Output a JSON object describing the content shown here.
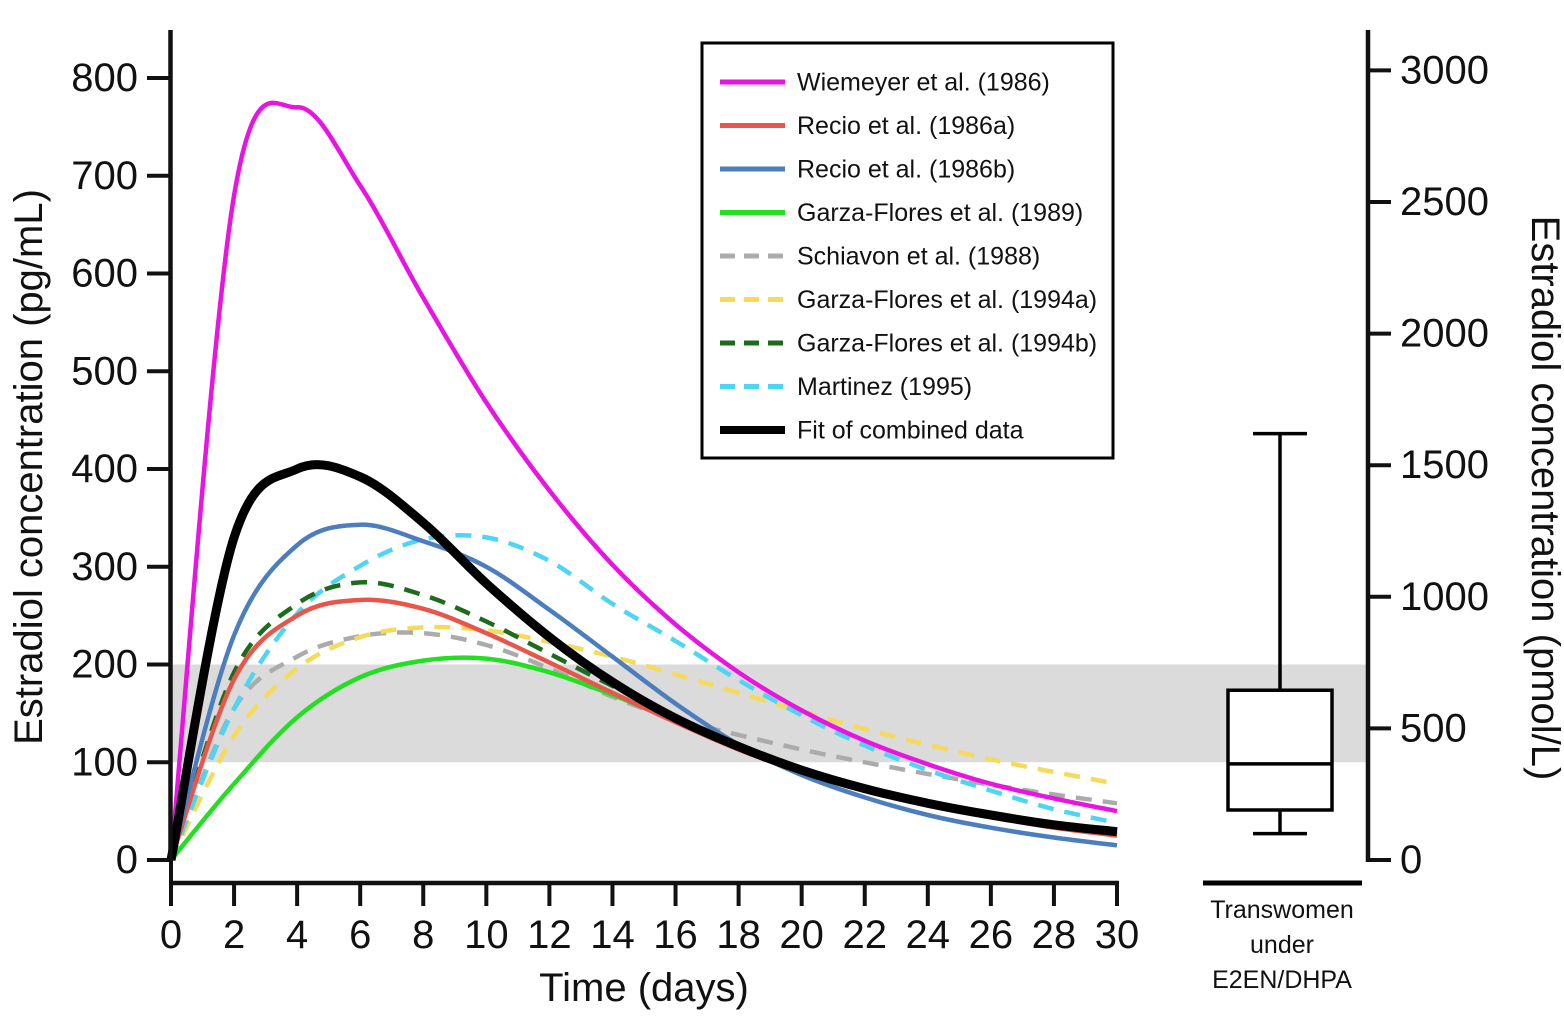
{
  "figure": {
    "description": "Pharmacokinetic curves of estradiol concentration after injection, eight studies plus combined fit, with reference band and box plot of transwomen under E2EN/DHPA",
    "background_color": "#ffffff",
    "text_color": "#111111"
  },
  "chart_data": {
    "type": "line",
    "main": {
      "x_label": "Time (days)",
      "y_left_label": "Estradiol concentration (pg/mL)",
      "y_right_label": "Estradiol concentration (pmol/L)",
      "x_range_days": [
        0,
        30
      ],
      "y_left_range_pg_ml": [
        0,
        849
      ],
      "y_right_range_pmol_l": [
        0,
        3120
      ],
      "x_ticks": [
        0,
        2,
        4,
        6,
        8,
        10,
        12,
        14,
        16,
        18,
        20,
        22,
        24,
        26,
        28,
        30
      ],
      "y_left_ticks": [
        0,
        100,
        200,
        300,
        400,
        500,
        600,
        700,
        800
      ],
      "y_right_ticks": [
        0,
        500,
        1000,
        1500,
        2000,
        2500,
        3000
      ],
      "grid": false,
      "reference_band_pg_ml": {
        "low": 100,
        "high": 200,
        "color": "#DBDBDB"
      },
      "x_days": [
        0,
        2,
        4,
        6,
        8,
        10,
        12,
        14,
        16,
        18,
        20,
        22,
        24,
        26,
        28,
        30
      ],
      "series": [
        {
          "id": "wiemeyer-1986",
          "label": "Wiemeyer et al. (1986)",
          "color": "#E913E2",
          "dashed": false,
          "width": 4.5,
          "values_pg_ml": [
            0,
            680,
            770,
            690,
            575,
            468,
            378,
            302,
            241,
            192,
            153,
            122,
            98,
            78,
            63,
            50
          ]
        },
        {
          "id": "recio-1986a",
          "label": "Recio et al. (1986a)",
          "color": "#E8564B",
          "dashed": false,
          "width": 4.5,
          "values_pg_ml": [
            0,
            185,
            250,
            266,
            257,
            232,
            202,
            171,
            141,
            113,
            90,
            71,
            56,
            44,
            33,
            25
          ]
        },
        {
          "id": "recio-1986b",
          "label": "Recio et al. (1986b)",
          "color": "#4C7EBD",
          "dashed": false,
          "width": 4.5,
          "values_pg_ml": [
            0,
            230,
            322,
            343,
            326,
            300,
            256,
            208,
            160,
            118,
            87,
            64,
            46,
            33,
            23,
            15
          ]
        },
        {
          "id": "garza-flores-1989",
          "label": "Garza-Flores et al. (1989)",
          "color": "#22DF22",
          "dashed": false,
          "width": 4.5,
          "values_pg_ml": [
            0,
            78,
            146,
            187,
            204,
            206,
            192,
            169,
            142,
            115,
            93,
            74,
            59,
            47,
            37,
            28
          ]
        },
        {
          "id": "schiavon-1988",
          "label": "Schiavon et al. (1988)",
          "color": "#ABABAB",
          "dashed": true,
          "width": 4.5,
          "values_pg_ml": [
            0,
            155,
            208,
            229,
            232,
            220,
            196,
            167,
            144,
            128,
            113,
            100,
            88,
            77,
            67,
            58
          ]
        },
        {
          "id": "garza-flores-1994a",
          "label": "Garza-Flores et al. (1994a)",
          "color": "#F6DA5C",
          "dashed": true,
          "width": 4.5,
          "values_pg_ml": [
            0,
            127,
            196,
            228,
            238,
            235,
            223,
            208,
            190,
            171,
            152,
            134,
            118,
            103,
            90,
            78
          ]
        },
        {
          "id": "garza-flores-1994b",
          "label": "Garza-Flores et al. (1994b)",
          "color": "#1E6B1E",
          "dashed": true,
          "width": 4.5,
          "values_pg_ml": [
            0,
            192,
            262,
            284,
            271,
            244,
            211,
            178,
            146,
            117,
            94,
            74,
            58,
            45,
            34,
            26
          ]
        },
        {
          "id": "martinez-1995",
          "label": "Martinez (1995)",
          "color": "#4ED4F4",
          "dashed": true,
          "width": 4.5,
          "values_pg_ml": [
            0,
            155,
            252,
            301,
            328,
            330,
            306,
            262,
            224,
            184,
            148,
            117,
            92,
            71,
            52,
            38
          ]
        },
        {
          "id": "fit-combined",
          "label": "Fit of combined data",
          "color": "#000000",
          "dashed": false,
          "width": 9,
          "values_pg_ml": [
            0,
            330,
            400,
            392,
            345,
            283,
            228,
            182,
            145,
            116,
            92,
            73,
            58,
            46,
            36,
            29
          ]
        }
      ],
      "draw_order": [
        4,
        5,
        3,
        7,
        6,
        1,
        2,
        0,
        8
      ]
    },
    "boxplot": {
      "label_lines": [
        "Transwomen",
        "under",
        "E2EN/DHPA"
      ],
      "units": "pmol/L",
      "whisker_low": 100,
      "q1": 190,
      "median": 365,
      "q3": 645,
      "whisker_high": 1620,
      "box_fill": "#ffffff",
      "line_color": "#000000"
    }
  },
  "legend": {
    "position": "top-right-inside",
    "border_color": "#000000",
    "fill": "#ffffff"
  }
}
